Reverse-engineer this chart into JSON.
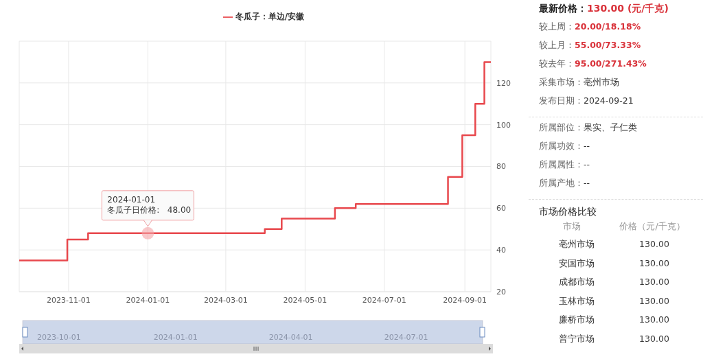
{
  "chart_data": [
    {
      "type": "step",
      "x": [
        "2023-09-24",
        "2023-10-31",
        "2023-11-16",
        "2024-03-31",
        "2024-04-13",
        "2024-05-24",
        "2024-06-09",
        "2024-08-19",
        "2024-08-30",
        "2024-09-09",
        "2024-09-16",
        "2024-09-21"
      ],
      "series": [
        {
          "name": "冬瓜子：单边/安徽",
          "color": "#e8484d",
          "values": [
            35,
            45,
            48,
            50,
            55,
            60,
            62,
            75,
            95,
            110,
            130,
            130
          ]
        }
      ],
      "xlim": [
        "2023-09-24",
        "2024-09-21"
      ],
      "xticks": [
        "2023-11-01",
        "2024-01-01",
        "2024-03-01",
        "2024-05-01",
        "2024-07-01",
        "2024-09-01"
      ],
      "ylim": [
        20,
        140
      ],
      "yticks": [
        20,
        40,
        60,
        80,
        100,
        120,
        {
          "value": 140,
          "label": null
        }
      ],
      "grid": true,
      "legend": "top",
      "marker": "none",
      "annotations": [
        {
          "text": "2024-01-01\n冬瓜子日价格:   48.00",
          "x": "2024-01-01",
          "y": 48
        },
        "2023-10-01",
        "2024-01-01",
        "2024-04-01",
        "2024-07-01"
      ]
    },
    {
      "type": "other",
      "annotations": [
        "最新价格：130.00 (元/千克)",
        "较上周：20.00/18.18%",
        "较上月：55.00/73.33%",
        "较去年：95.00/271.43%",
        "采集市场：亳州市场",
        "发布日期：2024-09-21"
      ]
    },
    {
      "type": "other",
      "annotations": [
        "所属部位：果实、子仁类",
        "所属功效：--",
        "所属属性：--",
        "所属产地：--"
      ]
    },
    {
      "type": "other",
      "title": "市场价格比较",
      "xlabel": "市场",
      "ylabel": "价格（元/千克）",
      "categories": [
        "亳州市场",
        "安国市场",
        "成都市场",
        "玉林市场",
        "廉桥市场",
        "普宁市场"
      ],
      "value_labels": [
        "130.00",
        "130.00",
        "130.00",
        "130.00",
        "130.00",
        "130.00"
      ]
    }
  ]
}
